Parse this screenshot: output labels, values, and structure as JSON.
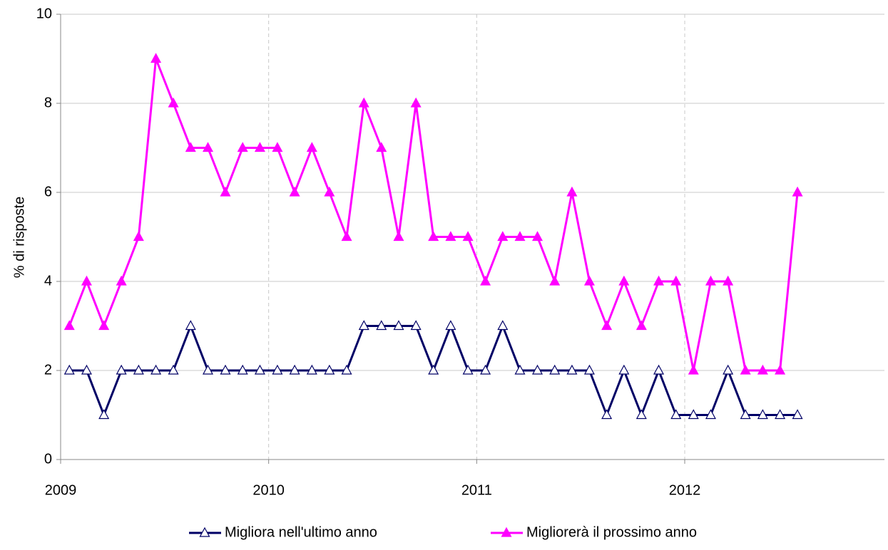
{
  "chart_data": {
    "type": "line",
    "y_label": "% di risposte",
    "x": [
      2009.042,
      2009.125,
      2009.208,
      2009.292,
      2009.375,
      2009.458,
      2009.542,
      2009.625,
      2009.708,
      2009.792,
      2009.875,
      2009.958,
      2010.042,
      2010.125,
      2010.208,
      2010.292,
      2010.375,
      2010.458,
      2010.542,
      2010.625,
      2010.708,
      2010.792,
      2010.875,
      2010.958,
      2011.042,
      2011.125,
      2011.208,
      2011.292,
      2011.375,
      2011.458,
      2011.542,
      2011.625,
      2011.708,
      2011.792,
      2011.875,
      2011.958,
      2012.042,
      2012.125,
      2012.208,
      2012.292,
      2012.375,
      2012.458,
      2012.542
    ],
    "series": [
      {
        "name": "Migliora nell'ultimo anno",
        "color": "#000066",
        "marker": "open-triangle",
        "values": [
          2,
          2,
          1,
          2,
          2,
          2,
          2,
          3,
          2,
          2,
          2,
          2,
          2,
          2,
          2,
          2,
          2,
          3,
          3,
          3,
          3,
          2,
          3,
          2,
          2,
          3,
          2,
          2,
          2,
          2,
          2,
          1,
          2,
          1,
          2,
          1,
          1,
          1,
          2,
          1,
          1,
          1,
          1
        ]
      },
      {
        "name": "Migliorerà il prossimo anno",
        "color": "#ff00ff",
        "marker": "filled-triangle",
        "values": [
          3,
          4,
          3,
          4,
          5,
          9,
          8,
          7,
          7,
          6,
          7,
          7,
          7,
          6,
          7,
          6,
          5,
          8,
          7,
          5,
          8,
          5,
          5,
          5,
          4,
          5,
          5,
          5,
          4,
          6,
          4,
          3,
          4,
          3,
          4,
          4,
          2,
          4,
          4,
          2,
          2,
          2,
          6
        ]
      }
    ],
    "xlim": [
      2009,
      2012.96
    ],
    "xticks": [
      2009,
      2010,
      2011,
      2012
    ],
    "ylim": [
      0,
      10
    ],
    "yticks": [
      0,
      2,
      4,
      6,
      8,
      10
    ],
    "grid": true,
    "legend": "bottom"
  }
}
